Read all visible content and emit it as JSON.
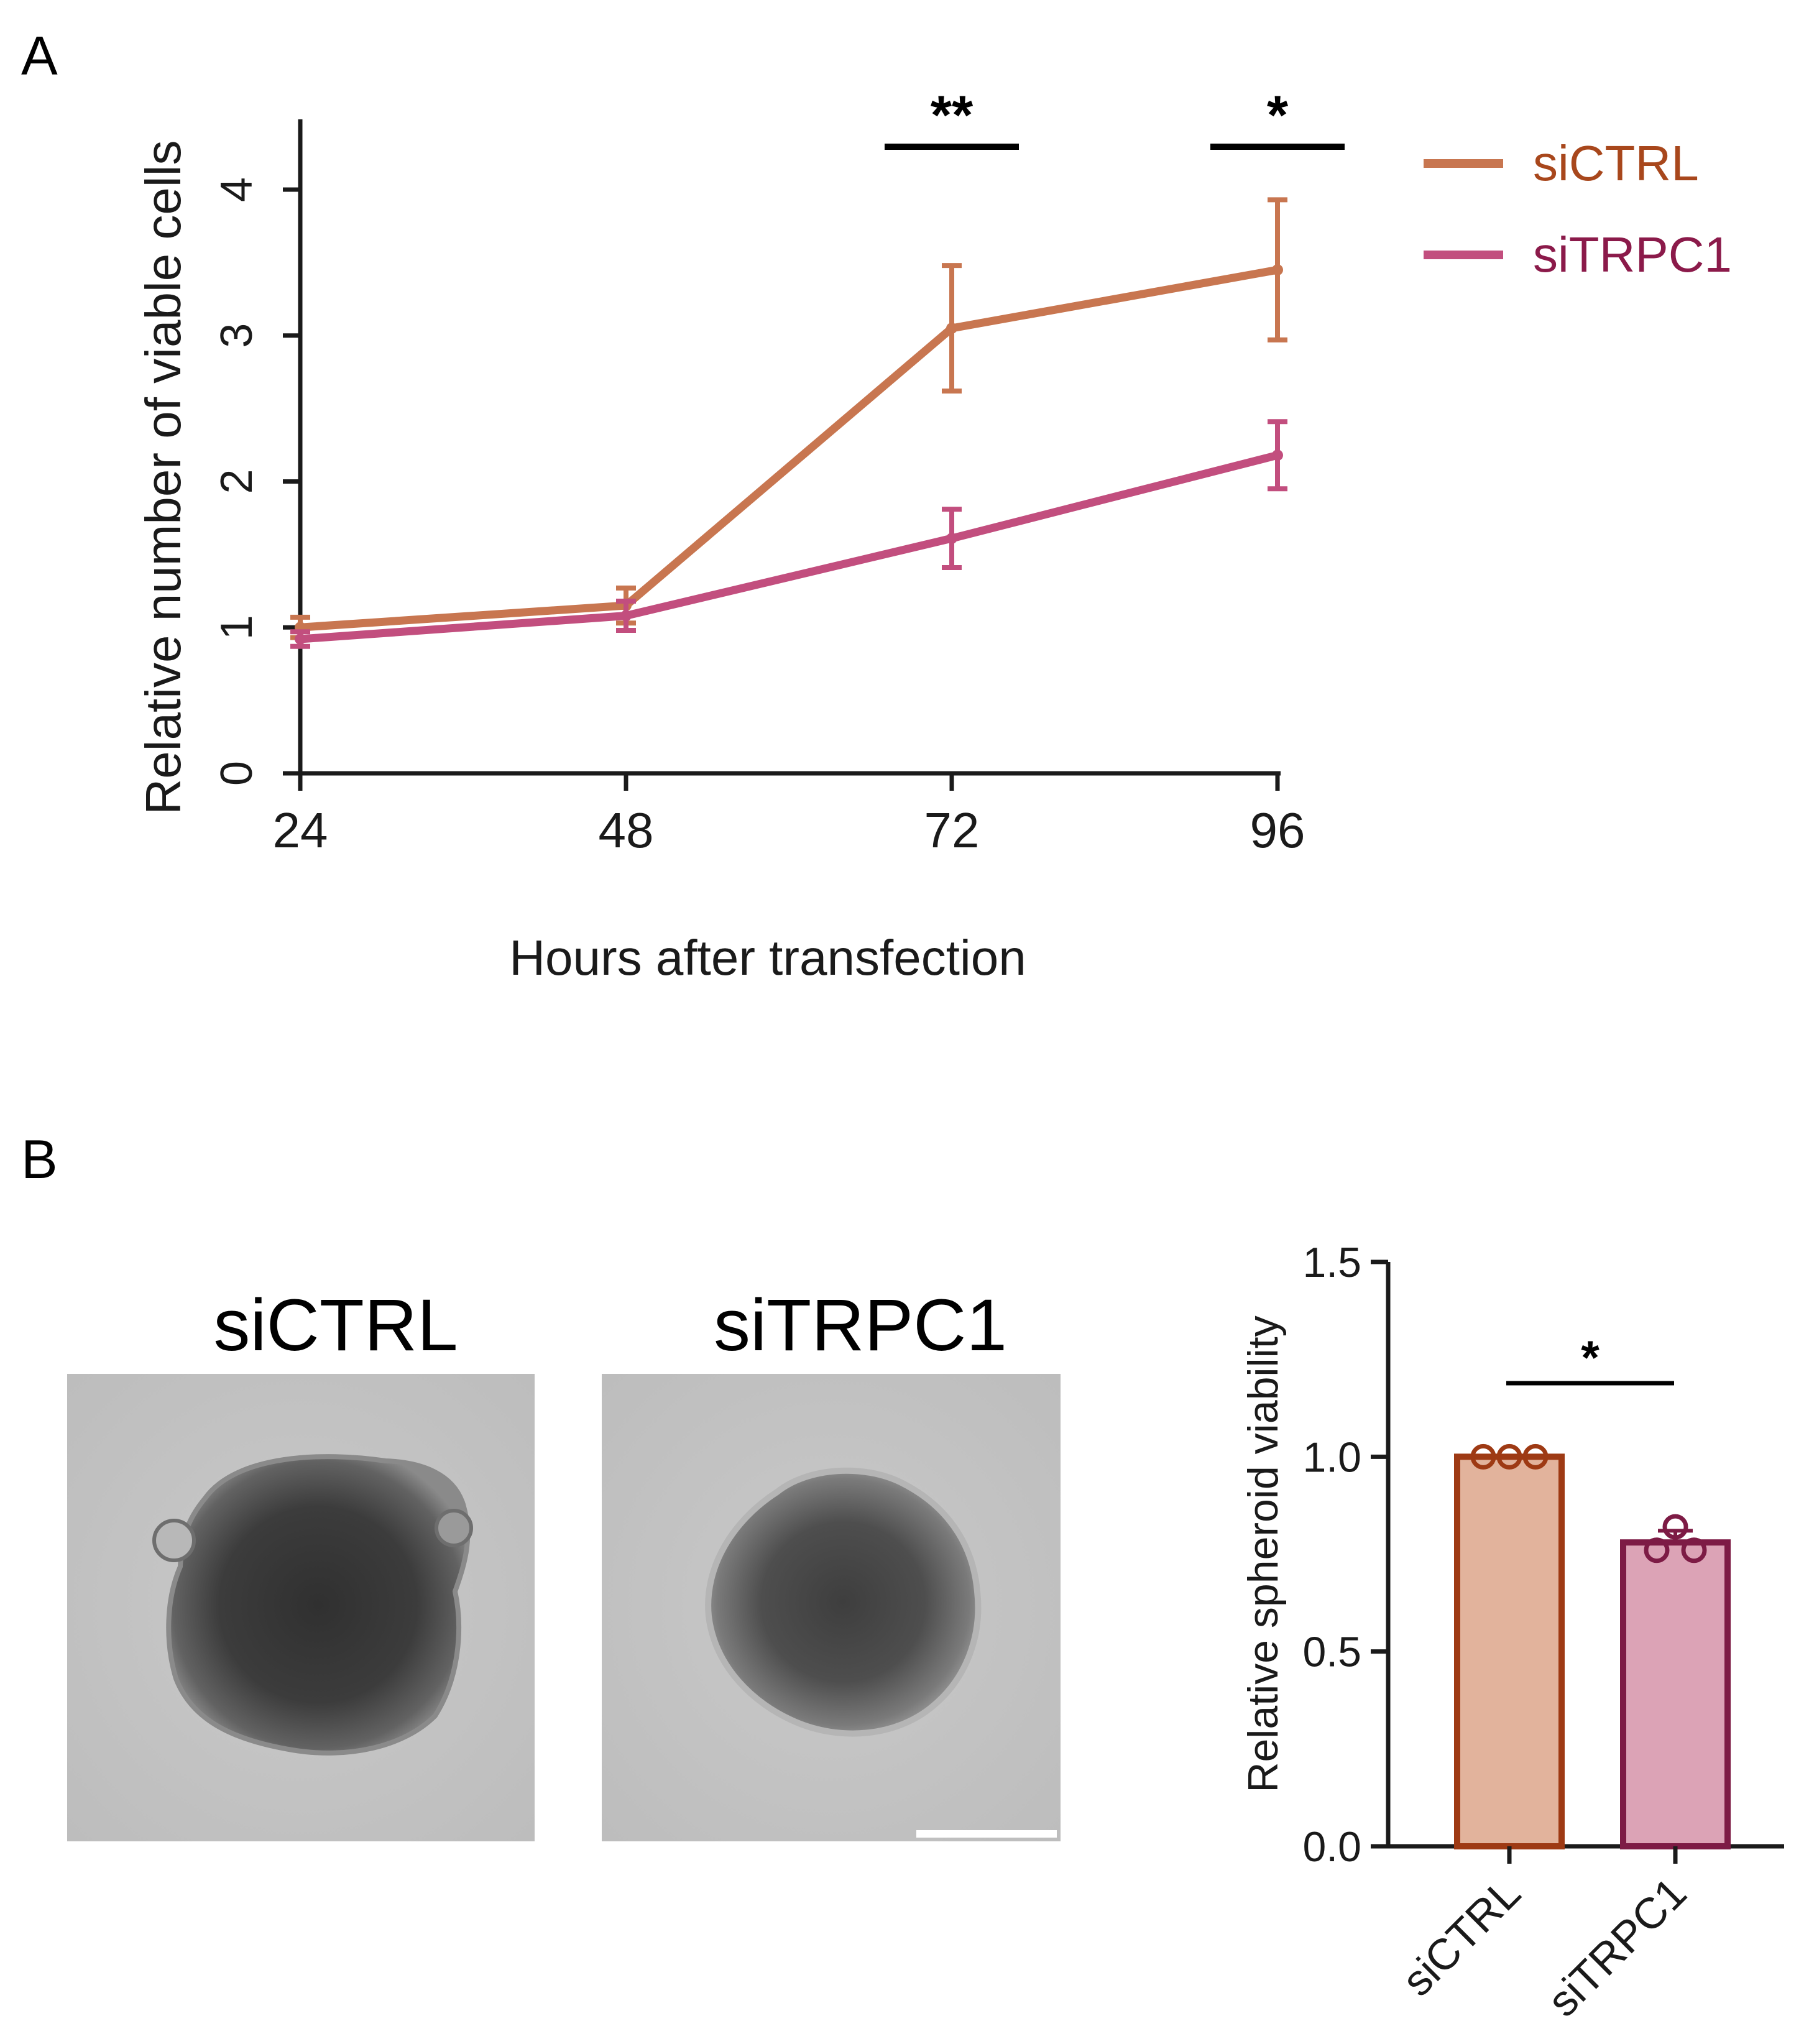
{
  "panels": {
    "a_label": "A",
    "b_label": "B"
  },
  "colors": {
    "siCTRL_line": "#C87650",
    "siTRPC1_line": "#C24E7E",
    "siCTRL_text": "#A8471C",
    "siTRPC1_text": "#8B1A4A",
    "bar_ctrl_fill": "#E2B39C",
    "bar_ctrl_edge": "#9E3A14",
    "bar_trpc_fill": "#DCA3B6",
    "bar_trpc_edge": "#7D1B45",
    "axis": "#1a1a1a"
  },
  "micrographs": {
    "siCTRL_title": "siCTRL",
    "siTRPC1_title": "siTRPC1"
  },
  "chart_data": [
    {
      "type": "line",
      "panel": "A",
      "title": "",
      "xlabel": "Hours after transfection",
      "ylabel": "Relative number of viable cells",
      "x": [
        24,
        48,
        72,
        96
      ],
      "xticks": [
        "24",
        "48",
        "72",
        "96"
      ],
      "yticks": [
        "0",
        "1",
        "2",
        "3",
        "4"
      ],
      "ylim": [
        0,
        4.5
      ],
      "series": [
        {
          "name": "siCTRL",
          "values": [
            1.0,
            1.15,
            3.05,
            3.45
          ],
          "err": [
            0.07,
            0.12,
            0.43,
            0.48
          ]
        },
        {
          "name": "siTRPC1",
          "values": [
            0.92,
            1.08,
            1.61,
            2.18
          ],
          "err": [
            0.05,
            0.1,
            0.2,
            0.23
          ]
        }
      ],
      "significance": [
        {
          "x": 72,
          "label": "**"
        },
        {
          "x": 96,
          "label": "*"
        }
      ],
      "legend_position": "right"
    },
    {
      "type": "bar",
      "panel": "B",
      "title": "",
      "xlabel": "",
      "ylabel": "Relative spheroid viability",
      "categories": [
        "siCTRL",
        "siTRPC1"
      ],
      "values": [
        1.0,
        0.78
      ],
      "err": [
        0.0,
        0.03
      ],
      "points": [
        [
          1.0,
          1.0,
          1.0
        ],
        [
          0.82,
          0.76,
          0.76
        ]
      ],
      "yticks": [
        "0.0",
        "0.5",
        "1.0",
        "1.5"
      ],
      "ylim": [
        0,
        1.5
      ],
      "significance": {
        "label": "*"
      }
    }
  ]
}
